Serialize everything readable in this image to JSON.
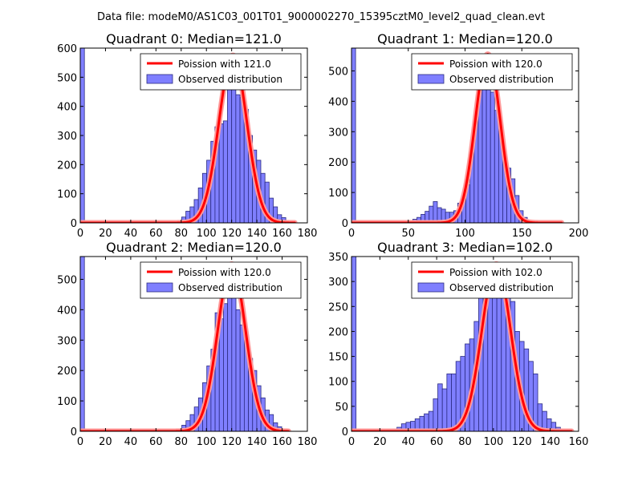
{
  "figure": {
    "suptitle": "Data file: modeM0/AS1C03_001T01_9000002270_15395cztM0_level2_quad_clean.evt"
  },
  "chart_data": [
    {
      "type": "bar",
      "title": "Quadrant 0: Median=121.0",
      "xlim": [
        0,
        180
      ],
      "ylim": [
        0,
        600
      ],
      "xticks": [
        "0",
        "20",
        "40",
        "60",
        "80",
        "100",
        "120",
        "140",
        "160",
        "180"
      ],
      "yticks": [
        "0",
        "100",
        "200",
        "300",
        "400",
        "500",
        "600"
      ],
      "bin_width": 3.3,
      "bins": [
        [
          0,
          600
        ],
        [
          73.8,
          3
        ],
        [
          77.1,
          8
        ],
        [
          80.4,
          20
        ],
        [
          83.7,
          40
        ],
        [
          87,
          55
        ],
        [
          90.3,
          80
        ],
        [
          93.6,
          120
        ],
        [
          96.9,
          170
        ],
        [
          100.2,
          215
        ],
        [
          103.5,
          280
        ],
        [
          106.8,
          330
        ],
        [
          110.1,
          340
        ],
        [
          113.4,
          350
        ],
        [
          116.7,
          470
        ],
        [
          120,
          560
        ],
        [
          123.3,
          440
        ],
        [
          126.6,
          430
        ],
        [
          129.9,
          390
        ],
        [
          133.2,
          300
        ],
        [
          136.5,
          250
        ],
        [
          139.8,
          215
        ],
        [
          143.1,
          170
        ],
        [
          146.4,
          140
        ],
        [
          149.7,
          85
        ],
        [
          153,
          55
        ],
        [
          156.3,
          28
        ],
        [
          159.6,
          18
        ],
        [
          162.9,
          8
        ],
        [
          166.2,
          3
        ]
      ],
      "series": [
        {
          "name": "Poission with 121.0",
          "mean": 121.0,
          "peak": 575,
          "sigma": 11,
          "x_range": [
            0,
            170
          ]
        }
      ],
      "legend": [
        "Poission with 121.0",
        "Observed distribution"
      ],
      "legend_position": "top-right"
    },
    {
      "type": "bar",
      "title": "Quadrant 1: Median=120.0",
      "xlim": [
        0,
        200
      ],
      "ylim": [
        0,
        575
      ],
      "xticks": [
        "0",
        "50",
        "100",
        "150",
        "200"
      ],
      "yticks": [
        "0",
        "100",
        "200",
        "300",
        "400",
        "500"
      ],
      "bin_width": 3.6,
      "bins": [
        [
          0,
          575
        ],
        [
          50.4,
          8
        ],
        [
          54,
          12
        ],
        [
          57.6,
          18
        ],
        [
          61.2,
          28
        ],
        [
          64.8,
          38
        ],
        [
          68.4,
          55
        ],
        [
          72,
          70
        ],
        [
          75.6,
          50
        ],
        [
          79.2,
          45
        ],
        [
          82.8,
          35
        ],
        [
          86.4,
          35
        ],
        [
          90,
          40
        ],
        [
          93.6,
          65
        ],
        [
          97.2,
          80
        ],
        [
          100.8,
          125
        ],
        [
          104.4,
          230
        ],
        [
          108,
          340
        ],
        [
          111.6,
          440
        ],
        [
          115.2,
          520
        ],
        [
          118.8,
          555
        ],
        [
          122.4,
          430
        ],
        [
          126,
          370
        ],
        [
          129.6,
          300
        ],
        [
          133.2,
          200
        ],
        [
          136.8,
          180
        ],
        [
          140.4,
          145
        ],
        [
          144,
          90
        ],
        [
          147.6,
          40
        ],
        [
          151.2,
          18
        ],
        [
          154.8,
          8
        ],
        [
          158.4,
          3
        ]
      ],
      "series": [
        {
          "name": "Poission with 120.0",
          "mean": 120.0,
          "peak": 555,
          "sigma": 11,
          "x_range": [
            0,
            185
          ]
        }
      ],
      "legend": [
        "Poission with 120.0",
        "Observed distribution"
      ],
      "legend_position": "top-right"
    },
    {
      "type": "bar",
      "title": "Quadrant 2: Median=120.0",
      "xlim": [
        0,
        180
      ],
      "ylim": [
        0,
        575
      ],
      "xticks": [
        "0",
        "20",
        "40",
        "60",
        "80",
        "100",
        "120",
        "140",
        "160",
        "180"
      ],
      "yticks": [
        "0",
        "100",
        "200",
        "300",
        "400",
        "500"
      ],
      "bin_width": 3.3,
      "bins": [
        [
          0,
          575
        ],
        [
          73.9,
          5
        ],
        [
          77.2,
          8
        ],
        [
          80.5,
          20
        ],
        [
          83.8,
          35
        ],
        [
          87.1,
          55
        ],
        [
          90.4,
          80
        ],
        [
          93.7,
          110
        ],
        [
          97,
          160
        ],
        [
          100.3,
          215
        ],
        [
          103.6,
          270
        ],
        [
          106.9,
          390
        ],
        [
          110.2,
          370
        ],
        [
          113.5,
          420
        ],
        [
          116.8,
          480
        ],
        [
          120.1,
          520
        ],
        [
          123.4,
          400
        ],
        [
          126.7,
          350
        ],
        [
          130,
          310
        ],
        [
          133.3,
          240
        ],
        [
          136.6,
          200
        ],
        [
          139.9,
          150
        ],
        [
          143.2,
          110
        ],
        [
          146.5,
          70
        ],
        [
          149.8,
          55
        ],
        [
          153.1,
          28
        ],
        [
          156.4,
          15
        ],
        [
          159.7,
          5
        ]
      ],
      "series": [
        {
          "name": "Poission with 120.0",
          "mean": 120.0,
          "peak": 550,
          "sigma": 11,
          "x_range": [
            0,
            165
          ]
        }
      ],
      "legend": [
        "Poission with 120.0",
        "Observed distribution"
      ],
      "legend_position": "top-right"
    },
    {
      "type": "bar",
      "title": "Quadrant 3: Median=102.0",
      "xlim": [
        0,
        160
      ],
      "ylim": [
        0,
        350
      ],
      "xticks": [
        "0",
        "20",
        "40",
        "60",
        "80",
        "100",
        "120",
        "140",
        "160"
      ],
      "yticks": [
        "0",
        "50",
        "100",
        "150",
        "200",
        "250",
        "300",
        "350"
      ],
      "bin_width": 3.2,
      "bins": [
        [
          0,
          350
        ],
        [
          28.8,
          5
        ],
        [
          32,
          8
        ],
        [
          35.2,
          15
        ],
        [
          38.4,
          18
        ],
        [
          41.6,
          20
        ],
        [
          44.8,
          25
        ],
        [
          48,
          30
        ],
        [
          51.2,
          35
        ],
        [
          54.4,
          40
        ],
        [
          57.6,
          65
        ],
        [
          60.8,
          95
        ],
        [
          64,
          85
        ],
        [
          67.2,
          115
        ],
        [
          70.4,
          115
        ],
        [
          73.6,
          140
        ],
        [
          76.8,
          150
        ],
        [
          80,
          175
        ],
        [
          83.2,
          185
        ],
        [
          86.4,
          220
        ],
        [
          89.6,
          280
        ],
        [
          92.8,
          300
        ],
        [
          96,
          290
        ],
        [
          99.2,
          310
        ],
        [
          102.4,
          330
        ],
        [
          105.6,
          320
        ],
        [
          108.8,
          295
        ],
        [
          112,
          260
        ],
        [
          115.2,
          200
        ],
        [
          118.4,
          180
        ],
        [
          121.6,
          165
        ],
        [
          124.8,
          140
        ],
        [
          128,
          115
        ],
        [
          131.2,
          55
        ],
        [
          134.4,
          40
        ],
        [
          137.6,
          25
        ],
        [
          140.8,
          18
        ],
        [
          144,
          8
        ],
        [
          147.2,
          3
        ]
      ],
      "series": [
        {
          "name": "Poission with 102.0",
          "mean": 102.0,
          "peak": 335,
          "sigma": 10.1,
          "x_range": [
            0,
            155
          ]
        }
      ],
      "legend": [
        "Poission with 102.0",
        "Observed distribution"
      ],
      "legend_position": "top-right"
    }
  ],
  "colors": {
    "bar_fill": "#7f7fff",
    "bar_stroke": "#2b2b80",
    "curve": "#ff0000",
    "curve_halo": "#ff9a9a"
  }
}
